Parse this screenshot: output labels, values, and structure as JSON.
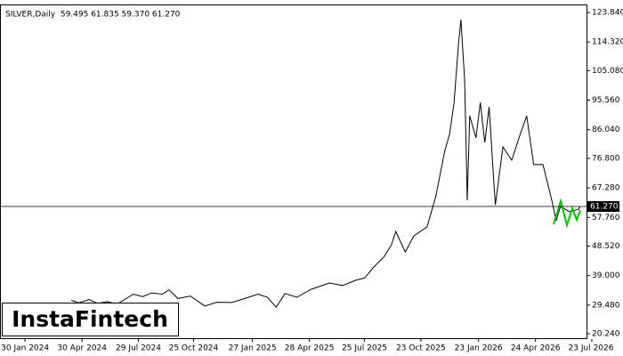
{
  "chart_data": {
    "type": "line",
    "title": "SILVER,Daily  59.495 61.835 59.370 61.270",
    "logo": "InstaFintech",
    "color": "#000000",
    "x": [
      "2024-04-13",
      "2024-04-25",
      "2024-05-11",
      "2024-05-25",
      "2024-06-09",
      "2024-06-25",
      "2024-07-21",
      "2024-08-05",
      "2024-08-19",
      "2024-09-05",
      "2024-09-16",
      "2024-09-30",
      "2024-10-20",
      "2024-11-12",
      "2024-12-01",
      "2024-12-25",
      "2025-01-15",
      "2025-02-05",
      "2025-02-20",
      "2025-03-06",
      "2025-03-20",
      "2025-04-08",
      "2025-05-01",
      "2025-05-30",
      "2025-06-20",
      "2025-07-11",
      "2025-07-25",
      "2025-08-09",
      "2025-08-25",
      "2025-09-06",
      "2025-09-13",
      "2025-09-28",
      "2025-10-12",
      "2025-11-02",
      "2025-11-16",
      "2025-11-30",
      "2025-12-08",
      "2025-12-15",
      "2025-12-22",
      "2025-12-26",
      "2026-01-01",
      "2026-01-05",
      "2026-01-09",
      "2026-01-19",
      "2026-01-26",
      "2026-02-02",
      "2026-02-09",
      "2026-02-17",
      "2026-02-19",
      "2026-03-03",
      "2026-03-17",
      "2026-03-31",
      "2026-04-10",
      "2026-04-21",
      "2026-05-06",
      "2026-05-20",
      "2026-05-27",
      "2026-06-03",
      "2026-06-17",
      "2026-07-02",
      "2026-07-04"
    ],
    "values": [
      31.0,
      30.2,
      31.3,
      30.0,
      30.6,
      29.8,
      33.0,
      32.2,
      33.4,
      33.0,
      34.4,
      31.6,
      32.4,
      29.2,
      30.4,
      30.3,
      31.6,
      33.0,
      32.0,
      28.8,
      33.2,
      32.0,
      34.6,
      36.6,
      35.8,
      37.5,
      38.2,
      41.8,
      45.0,
      48.9,
      53.2,
      46.6,
      51.8,
      54.7,
      64.7,
      79.0,
      84.8,
      94.8,
      113.5,
      121.5,
      102.0,
      63.3,
      90.5,
      83.4,
      94.8,
      81.9,
      93.4,
      67.6,
      61.8,
      80.5,
      76.2,
      84.8,
      90.5,
      74.8,
      74.8,
      63.3,
      56.7,
      61.3,
      59.6,
      60.4,
      61.27
    ],
    "xlim": [
      "2023-12-21",
      "2026-07-23"
    ],
    "xticks": [
      {
        "value": "2024-01-30",
        "label": "30 Jan 2024"
      },
      {
        "value": "2024-04-30",
        "label": "30 Apr 2024"
      },
      {
        "value": "2024-07-29",
        "label": "29 Jul 2024"
      },
      {
        "value": "2024-10-25",
        "label": "25 Oct 2024"
      },
      {
        "value": "2025-01-27",
        "label": "27 Jan 2025"
      },
      {
        "value": "2025-04-28",
        "label": "28 Apr 2025"
      },
      {
        "value": "2025-07-25",
        "label": "25 Jul 2025"
      },
      {
        "value": "2025-10-23",
        "label": "23 Oct 2025"
      },
      {
        "value": "2026-01-23",
        "label": "23 Jan 2026"
      },
      {
        "value": "2026-04-24",
        "label": "24 Apr 2026"
      },
      {
        "value": "2026-07-23",
        "label": "23 Jul 2026"
      }
    ],
    "ylim": [
      20.24,
      123.84
    ],
    "yticks": [
      {
        "value": 123.84,
        "label": "123.840"
      },
      {
        "value": 114.32,
        "label": "114.320"
      },
      {
        "value": 105.08,
        "label": "105.080"
      },
      {
        "value": 95.56,
        "label": "95.560"
      },
      {
        "value": 86.04,
        "label": "86.040"
      },
      {
        "value": 76.8,
        "label": "76.800"
      },
      {
        "value": 67.28,
        "label": "67.280"
      },
      {
        "value": 57.76,
        "label": "57.760"
      },
      {
        "value": 48.52,
        "label": "48.520"
      },
      {
        "value": 39.0,
        "label": "39.000"
      },
      {
        "value": 29.48,
        "label": "29.480"
      },
      {
        "value": 20.24,
        "label": "20.240"
      }
    ],
    "last_price": {
      "value": 61.27,
      "label": "61.270"
    }
  }
}
